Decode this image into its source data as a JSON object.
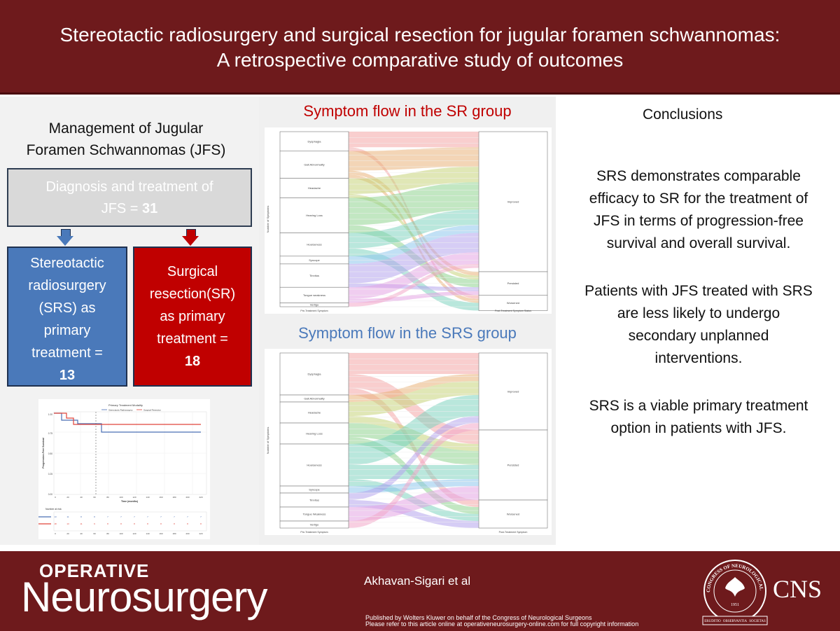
{
  "header": {
    "title_line1": "Stereotactic radiosurgery and surgical resection for jugular foramen schwannomas:",
    "title_line2": "A retrospective comparative study of outcomes"
  },
  "left": {
    "title_line1": "Management of Jugular",
    "title_line2": "Foramen Schwannomas (JFS)",
    "diagnosis_line1": "Diagnosis and treatment of",
    "diagnosis_prefix": "JFS = ",
    "diagnosis_count": "31",
    "srs_box": {
      "lines": [
        "Stereotactic",
        "radiosurgery",
        "(SRS) as",
        "primary",
        "treatment ="
      ],
      "count": "13",
      "color": "#4a79ba"
    },
    "sr_box": {
      "lines": [
        "Surgical",
        "resection(SR)",
        "as primary",
        "treatment ="
      ],
      "count": "18",
      "color": "#c00000"
    }
  },
  "km_plot": {
    "title": "Primary Treatment Modality",
    "legend": [
      "Stereotactic Radiosurgery",
      "Surgical Resection"
    ],
    "ylabel": "Progression-Free Survival",
    "xlabel": "Time (months)",
    "yticks": [
      "1.00",
      "0.75",
      "0.50",
      "0.25",
      "0.00"
    ],
    "xticks": [
      "0",
      "20",
      "40",
      "60",
      "80",
      "100",
      "120",
      "140",
      "160",
      "180",
      "200",
      "220"
    ],
    "risk_title": "Number at risk",
    "risk_srs": [
      "13",
      "11",
      "8",
      "8",
      "7",
      "7",
      "7",
      "7",
      "7",
      "7",
      "7",
      "7"
    ],
    "risk_sr": [
      "18",
      "13",
      "11",
      "9",
      "8",
      "8",
      "8",
      "8",
      "8",
      "8",
      "8",
      "8"
    ],
    "colors": {
      "srs": "#4a6fb5",
      "sr": "#e0433a"
    }
  },
  "sankey_sr": {
    "title": "Symptom flow in the SR group",
    "title_color": "#c00000",
    "left_nodes": [
      "Dysphagia",
      "Gait Abnormality",
      "Headache",
      "Hearing Loss",
      "Hoarseness",
      "Syncope",
      "Tinnitus",
      "Tongue weakness",
      "Vertigo"
    ],
    "right_nodes": [
      "Improved",
      "Persisted",
      "Worsened"
    ],
    "ylabel": "Number of Symptoms",
    "xlabel_left": "Pre-Treatment Symptom",
    "xlabel_right": "Post-Treatment Symptom Status"
  },
  "sankey_srs": {
    "title": "Symptom flow in the SRS group",
    "title_color": "#4a79ba",
    "left_nodes": [
      "Dysphagia",
      "Gait Abnormality",
      "Headache",
      "Hearing Loss",
      "Hoarseness",
      "Syncope",
      "Tinnitus",
      "Tongue Weakness",
      "Vertigo"
    ],
    "right_nodes": [
      "Improved",
      "Persisted",
      "Worsened"
    ],
    "ylabel": "Number of Symptoms",
    "xlabel_left": "Pre-Treatment Symptom",
    "xlabel_right": "Post-Treatment Symptom"
  },
  "conclusions": {
    "title": "Conclusions",
    "p1": [
      "SRS demonstrates comparable",
      "efficacy to SR for the treatment of",
      "JFS in terms of progression-free",
      "survival and overall survival."
    ],
    "p2": [
      "Patients with JFS treated with SRS",
      "are less likely to undergo",
      "secondary unplanned",
      "interventions."
    ],
    "p3": [
      "SRS is a viable primary treatment",
      "option in patients with JFS."
    ]
  },
  "footer": {
    "brand_top": "OPERATIVE",
    "brand_main": "Neurosurgery",
    "author": "Akhavan-Sigari et al",
    "published": "Published by Wolters Kluwer on behalf of the Congress of Neurological Surgeons",
    "refer": "Please refer to this article online at operativeneurosurgery-online.com for full copyright information",
    "cns": "CNS",
    "seal_text_top": "CONGRESS OF NEUROLOGICAL SURGEONS",
    "seal_year": "1951",
    "seal_motto": [
      "ERUDITIO",
      "OBSERVANTIA",
      "SOCIETAS"
    ]
  }
}
